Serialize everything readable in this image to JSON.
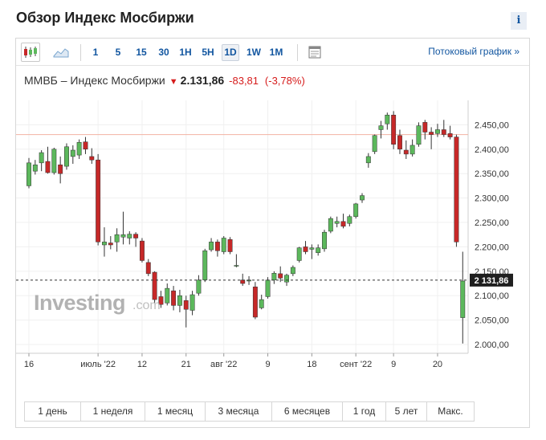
{
  "page": {
    "title": "Обзор Индекс Мосбиржи",
    "info_label": "i"
  },
  "toolbar": {
    "chart_types": [
      {
        "icon": "candlestick-chart-icon",
        "active": true
      },
      {
        "icon": "area-chart-icon",
        "active": false
      }
    ],
    "timeframes": [
      {
        "label": "1",
        "active": false
      },
      {
        "label": "5",
        "active": false
      },
      {
        "label": "15",
        "active": false
      },
      {
        "label": "30",
        "active": false
      },
      {
        "label": "1H",
        "active": false
      },
      {
        "label": "5H",
        "active": false
      },
      {
        "label": "1D",
        "active": true
      },
      {
        "label": "1W",
        "active": false
      },
      {
        "label": "1M",
        "active": false
      }
    ],
    "settings_icon": "chart-settings-icon",
    "stream_link": "Потоковый график »"
  },
  "quote": {
    "name": "ММВБ – Индекс Мосбиржи",
    "direction": "down",
    "price": "2.131,86",
    "change": "-83,81",
    "change_pct": "(-3,78%)",
    "down_color": "#d61c1c"
  },
  "watermark": {
    "text": "Investing",
    "suffix": ".com"
  },
  "periods": [
    "1 день",
    "1 неделя",
    "1 месяц",
    "3 месяца",
    "6 месяцев",
    "1 год",
    "5 лет",
    "Макс."
  ],
  "chart_data": {
    "type": "candlestick",
    "colors": {
      "up": "#5cb85c",
      "down": "#c62828",
      "reference_line": "#f2b3a3"
    },
    "ylim": [
      1982,
      2500
    ],
    "yticks": [
      2000,
      2050,
      2100,
      2150,
      2200,
      2250,
      2300,
      2350,
      2400,
      2450
    ],
    "ytick_labels": [
      "2.000,00",
      "2.050,00",
      "2.100,00",
      "2.150,00",
      "2.200,00",
      "2.250,00",
      "2.300,00",
      "2.350,00",
      "2.400,00",
      "2.450,00"
    ],
    "xtick_labels": [
      {
        "label": "16",
        "index": 0
      },
      {
        "label": "июль '22",
        "index": 11
      },
      {
        "label": "12",
        "index": 18
      },
      {
        "label": "21",
        "index": 25
      },
      {
        "label": "авг '22",
        "index": 31
      },
      {
        "label": "9",
        "index": 38
      },
      {
        "label": "18",
        "index": 45
      },
      {
        "label": "сент '22",
        "index": 52
      },
      {
        "label": "9",
        "index": 58
      },
      {
        "label": "20",
        "index": 65
      }
    ],
    "reference_line": 2430,
    "last_value": 2131.86,
    "last_value_label": "2 131,86",
    "candles": [
      {
        "o": 2325,
        "h": 2382,
        "l": 2320,
        "c": 2372
      },
      {
        "o": 2355,
        "h": 2378,
        "l": 2348,
        "c": 2368
      },
      {
        "o": 2372,
        "h": 2398,
        "l": 2355,
        "c": 2393
      },
      {
        "o": 2375,
        "h": 2405,
        "l": 2350,
        "c": 2352
      },
      {
        "o": 2352,
        "h": 2403,
        "l": 2348,
        "c": 2400
      },
      {
        "o": 2368,
        "h": 2385,
        "l": 2330,
        "c": 2350
      },
      {
        "o": 2365,
        "h": 2412,
        "l": 2358,
        "c": 2405
      },
      {
        "o": 2385,
        "h": 2408,
        "l": 2370,
        "c": 2398
      },
      {
        "o": 2388,
        "h": 2420,
        "l": 2380,
        "c": 2414
      },
      {
        "o": 2415,
        "h": 2425,
        "l": 2390,
        "c": 2400
      },
      {
        "o": 2385,
        "h": 2402,
        "l": 2370,
        "c": 2378
      },
      {
        "o": 2378,
        "h": 2390,
        "l": 2203,
        "c": 2210
      },
      {
        "o": 2204,
        "h": 2240,
        "l": 2180,
        "c": 2210
      },
      {
        "o": 2208,
        "h": 2222,
        "l": 2195,
        "c": 2204
      },
      {
        "o": 2210,
        "h": 2238,
        "l": 2190,
        "c": 2225
      },
      {
        "o": 2220,
        "h": 2272,
        "l": 2205,
        "c": 2225
      },
      {
        "o": 2218,
        "h": 2232,
        "l": 2205,
        "c": 2226
      },
      {
        "o": 2226,
        "h": 2230,
        "l": 2200,
        "c": 2218
      },
      {
        "o": 2212,
        "h": 2218,
        "l": 2168,
        "c": 2172
      },
      {
        "o": 2168,
        "h": 2175,
        "l": 2140,
        "c": 2145
      },
      {
        "o": 2148,
        "h": 2150,
        "l": 2085,
        "c": 2092
      },
      {
        "o": 2098,
        "h": 2110,
        "l": 2075,
        "c": 2082
      },
      {
        "o": 2085,
        "h": 2125,
        "l": 2080,
        "c": 2115
      },
      {
        "o": 2110,
        "h": 2120,
        "l": 2070,
        "c": 2080
      },
      {
        "o": 2080,
        "h": 2112,
        "l": 2066,
        "c": 2100
      },
      {
        "o": 2090,
        "h": 2100,
        "l": 2035,
        "c": 2072
      },
      {
        "o": 2070,
        "h": 2110,
        "l": 2060,
        "c": 2102
      },
      {
        "o": 2105,
        "h": 2142,
        "l": 2100,
        "c": 2132
      },
      {
        "o": 2132,
        "h": 2196,
        "l": 2128,
        "c": 2192
      },
      {
        "o": 2194,
        "h": 2218,
        "l": 2190,
        "c": 2210
      },
      {
        "o": 2210,
        "h": 2215,
        "l": 2180,
        "c": 2192
      },
      {
        "o": 2190,
        "h": 2222,
        "l": 2185,
        "c": 2218
      },
      {
        "o": 2215,
        "h": 2220,
        "l": 2185,
        "c": 2190
      },
      {
        "o": 2162,
        "h": 2185,
        "l": 2158,
        "c": 2162
      },
      {
        "o": 2132,
        "h": 2145,
        "l": 2120,
        "c": 2125
      },
      {
        "o": 2130,
        "h": 2140,
        "l": 2122,
        "c": 2132
      },
      {
        "o": 2118,
        "h": 2128,
        "l": 2052,
        "c": 2056
      },
      {
        "o": 2075,
        "h": 2102,
        "l": 2072,
        "c": 2092
      },
      {
        "o": 2098,
        "h": 2138,
        "l": 2094,
        "c": 2132
      },
      {
        "o": 2132,
        "h": 2150,
        "l": 2124,
        "c": 2146
      },
      {
        "o": 2145,
        "h": 2160,
        "l": 2128,
        "c": 2136
      },
      {
        "o": 2128,
        "h": 2145,
        "l": 2120,
        "c": 2142
      },
      {
        "o": 2145,
        "h": 2162,
        "l": 2140,
        "c": 2158
      },
      {
        "o": 2172,
        "h": 2200,
        "l": 2168,
        "c": 2198
      },
      {
        "o": 2200,
        "h": 2212,
        "l": 2185,
        "c": 2190
      },
      {
        "o": 2195,
        "h": 2205,
        "l": 2175,
        "c": 2198
      },
      {
        "o": 2188,
        "h": 2205,
        "l": 2182,
        "c": 2198
      },
      {
        "o": 2196,
        "h": 2235,
        "l": 2190,
        "c": 2230
      },
      {
        "o": 2232,
        "h": 2262,
        "l": 2228,
        "c": 2258
      },
      {
        "o": 2248,
        "h": 2262,
        "l": 2240,
        "c": 2252
      },
      {
        "o": 2252,
        "h": 2268,
        "l": 2238,
        "c": 2242
      },
      {
        "o": 2248,
        "h": 2266,
        "l": 2242,
        "c": 2262
      },
      {
        "o": 2262,
        "h": 2290,
        "l": 2258,
        "c": 2288
      },
      {
        "o": 2296,
        "h": 2310,
        "l": 2290,
        "c": 2305
      },
      {
        "o": 2372,
        "h": 2392,
        "l": 2362,
        "c": 2385
      },
      {
        "o": 2395,
        "h": 2430,
        "l": 2390,
        "c": 2428
      },
      {
        "o": 2440,
        "h": 2458,
        "l": 2422,
        "c": 2448
      },
      {
        "o": 2452,
        "h": 2475,
        "l": 2440,
        "c": 2470
      },
      {
        "o": 2470,
        "h": 2478,
        "l": 2400,
        "c": 2410
      },
      {
        "o": 2428,
        "h": 2440,
        "l": 2390,
        "c": 2400
      },
      {
        "o": 2398,
        "h": 2418,
        "l": 2380,
        "c": 2390
      },
      {
        "o": 2390,
        "h": 2420,
        "l": 2385,
        "c": 2408
      },
      {
        "o": 2410,
        "h": 2455,
        "l": 2405,
        "c": 2448
      },
      {
        "o": 2455,
        "h": 2460,
        "l": 2420,
        "c": 2435
      },
      {
        "o": 2435,
        "h": 2445,
        "l": 2400,
        "c": 2430
      },
      {
        "o": 2432,
        "h": 2452,
        "l": 2425,
        "c": 2440
      },
      {
        "o": 2440,
        "h": 2460,
        "l": 2425,
        "c": 2430
      },
      {
        "o": 2432,
        "h": 2448,
        "l": 2420,
        "c": 2425
      },
      {
        "o": 2425,
        "h": 2430,
        "l": 2200,
        "c": 2210
      },
      {
        "o": 2055,
        "h": 2190,
        "l": 2002,
        "c": 2130
      }
    ]
  }
}
